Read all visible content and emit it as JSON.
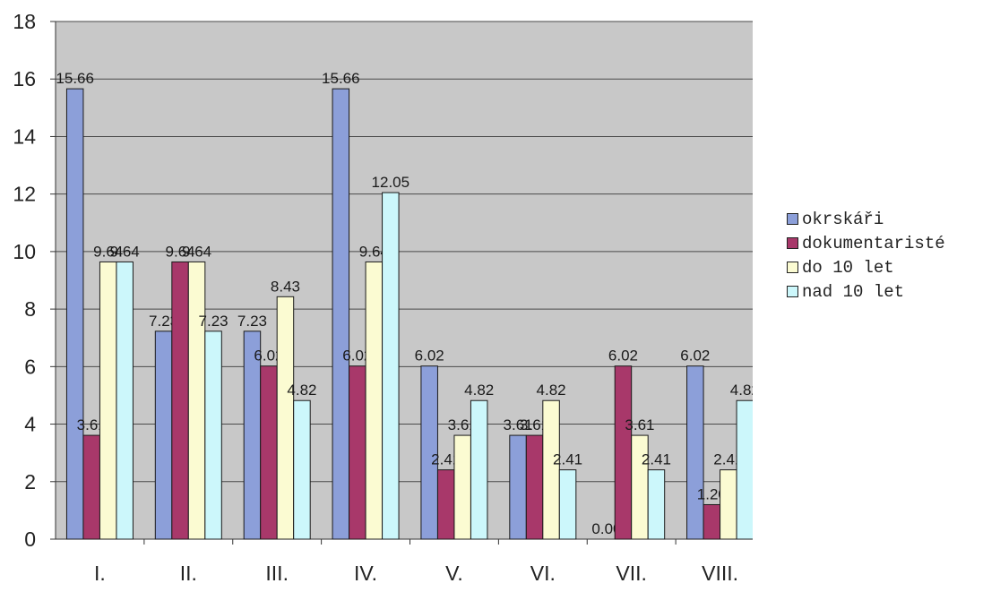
{
  "chart_data": {
    "type": "bar",
    "title": "",
    "xlabel": "",
    "ylabel": "",
    "ylim": [
      0,
      18
    ],
    "yticks": [
      0,
      2,
      4,
      6,
      8,
      10,
      12,
      14,
      16,
      18
    ],
    "grid": true,
    "legend_position": "right",
    "categories": [
      "I.",
      "II.",
      "III.",
      "IV.",
      "V.",
      "VI.",
      "VII.",
      "VIII."
    ],
    "series": [
      {
        "name": "okrskáři",
        "color": "#8c9fd9",
        "values": [
          15.66,
          7.23,
          7.23,
          15.66,
          6.02,
          3.61,
          0.0,
          6.02
        ]
      },
      {
        "name": "dokumentaristé",
        "color": "#a8386a",
        "values": [
          3.61,
          9.64,
          6.02,
          6.02,
          2.41,
          3.61,
          6.02,
          1.2
        ]
      },
      {
        "name": "do 10 let",
        "color": "#fbfbd2",
        "values": [
          9.64,
          9.64,
          8.43,
          9.64,
          3.61,
          4.82,
          3.61,
          2.41
        ]
      },
      {
        "name": "nad 10 let",
        "color": "#ccf7fb",
        "values": [
          9.64,
          7.23,
          4.82,
          12.05,
          4.82,
          2.41,
          2.41,
          4.82
        ]
      }
    ]
  }
}
